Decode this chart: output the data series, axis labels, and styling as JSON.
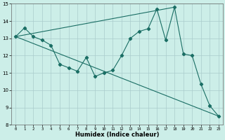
{
  "xlabel": "Humidex (Indice chaleur)",
  "bg_color": "#cceee8",
  "line_color": "#1a6e64",
  "grid_color": "#aacccc",
  "xlim": [
    -0.5,
    23.5
  ],
  "ylim": [
    8,
    15
  ],
  "xticks": [
    0,
    1,
    2,
    3,
    4,
    5,
    6,
    7,
    8,
    9,
    10,
    11,
    12,
    13,
    14,
    15,
    16,
    17,
    18,
    19,
    20,
    21,
    22,
    23
  ],
  "yticks": [
    8,
    9,
    10,
    11,
    12,
    13,
    14,
    15
  ],
  "series_main": {
    "x": [
      0,
      1,
      2,
      3,
      4,
      5,
      6,
      7,
      8,
      9,
      10,
      11,
      12,
      13,
      14,
      15,
      16,
      17,
      18,
      19,
      20,
      21,
      22,
      23
    ],
    "y": [
      13.1,
      13.6,
      13.1,
      12.9,
      12.6,
      11.5,
      11.3,
      11.1,
      11.9,
      10.8,
      11.0,
      11.15,
      12.0,
      13.0,
      13.4,
      13.55,
      14.7,
      12.9,
      14.8,
      12.1,
      12.0,
      10.35,
      9.1,
      8.5
    ]
  },
  "series_down": {
    "x": [
      0,
      23
    ],
    "y": [
      13.1,
      8.5
    ]
  },
  "series_up": {
    "x": [
      0,
      18
    ],
    "y": [
      13.1,
      14.8
    ]
  }
}
